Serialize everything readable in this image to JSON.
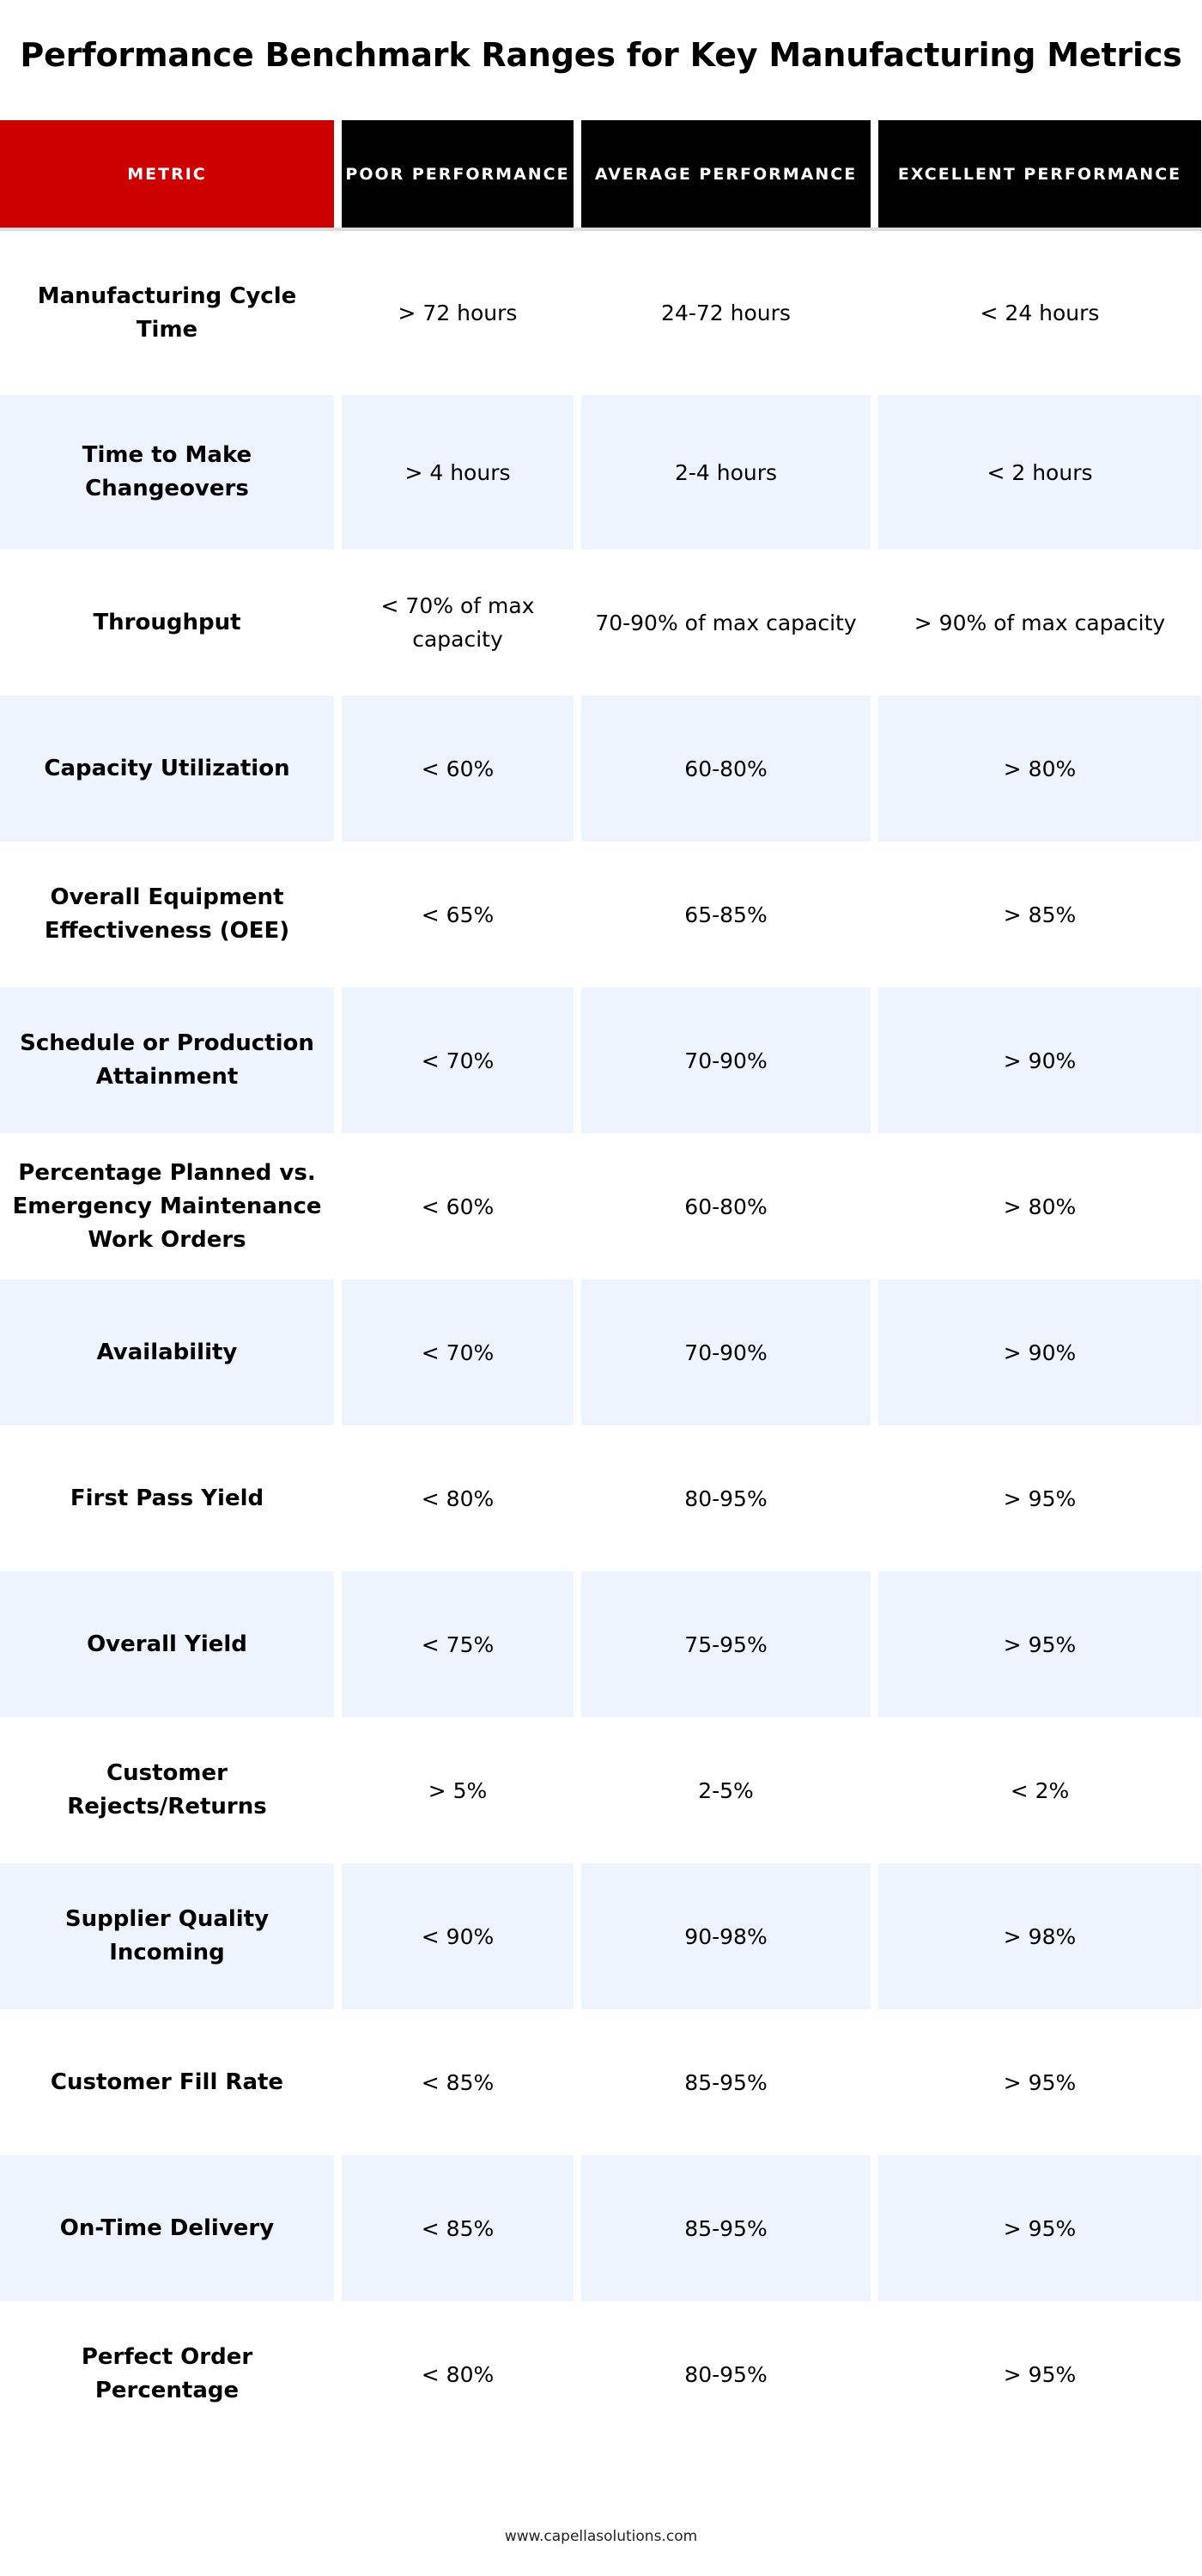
{
  "title": "Performance Benchmark Ranges for Key Manufacturing Metrics",
  "colors": {
    "accent_red": "#cc0000",
    "header_black": "#000000",
    "alt_row_blue": "#edf4fd"
  },
  "headers": [
    "METRIC",
    "POOR PERFORMANCE",
    "AVERAGE PERFORMANCE",
    "EXCELLENT PERFORMANCE"
  ],
  "rows": [
    {
      "metric": "Manufacturing Cycle Time",
      "poor": "> 72 hours",
      "average": "24-72 hours",
      "excellent": "< 24 hours"
    },
    {
      "metric": "Time to Make Changeovers",
      "poor": "> 4 hours",
      "average": "2-4 hours",
      "excellent": "< 2 hours"
    },
    {
      "metric": "Throughput",
      "poor": "< 70% of max capacity",
      "average": "70-90% of max capacity",
      "excellent": "> 90% of max capacity"
    },
    {
      "metric": "Capacity Utilization",
      "poor": "< 60%",
      "average": "60-80%",
      "excellent": "> 80%"
    },
    {
      "metric": "Overall Equipment Effectiveness (OEE)",
      "poor": "< 65%",
      "average": "65-85%",
      "excellent": "> 85%"
    },
    {
      "metric": "Schedule or Production Attainment",
      "poor": "< 70%",
      "average": "70-90%",
      "excellent": "> 90%"
    },
    {
      "metric": "Percentage Planned vs. Emergency Maintenance Work Orders",
      "poor": "< 60%",
      "average": "60-80%",
      "excellent": "> 80%"
    },
    {
      "metric": "Availability",
      "poor": "< 70%",
      "average": "70-90%",
      "excellent": "> 90%"
    },
    {
      "metric": "First Pass Yield",
      "poor": "< 80%",
      "average": "80-95%",
      "excellent": "> 95%"
    },
    {
      "metric": "Overall Yield",
      "poor": "< 75%",
      "average": "75-95%",
      "excellent": "> 95%"
    },
    {
      "metric": "Customer Rejects/Returns",
      "poor": "> 5%",
      "average": "2-5%",
      "excellent": "< 2%"
    },
    {
      "metric": "Supplier Quality Incoming",
      "poor": "< 90%",
      "average": "90-98%",
      "excellent": "> 98%"
    },
    {
      "metric": "Customer Fill Rate",
      "poor": "< 85%",
      "average": "85-95%",
      "excellent": "> 95%"
    },
    {
      "metric": "On-Time Delivery",
      "poor": "< 85%",
      "average": "85-95%",
      "excellent": "> 95%"
    },
    {
      "metric": "Perfect Order Percentage",
      "poor": "< 80%",
      "average": "80-95%",
      "excellent": "> 95%"
    }
  ],
  "footer": "www.capellasolutions.com"
}
